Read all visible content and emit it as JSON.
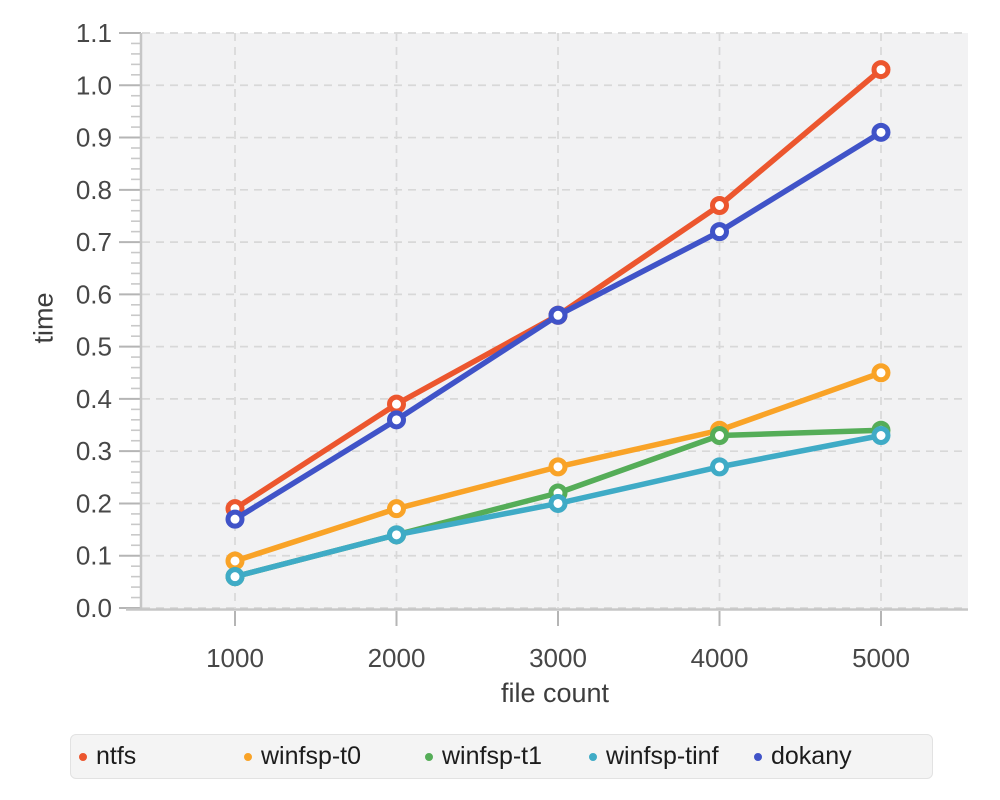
{
  "chart_data": {
    "type": "line",
    "title": "",
    "xlabel": "file count",
    "ylabel": "time",
    "x": [
      1000,
      2000,
      3000,
      4000,
      5000
    ],
    "x_tick_labels": [
      "1000",
      "2000",
      "3000",
      "4000",
      "5000"
    ],
    "ylim": [
      0.0,
      1.1
    ],
    "y_major_step": 0.1,
    "y_minor_step": 0.02,
    "y_tick_labels": [
      "0.0",
      "0.1",
      "0.2",
      "0.3",
      "0.4",
      "0.5",
      "0.6",
      "0.7",
      "0.8",
      "0.9",
      "1.0",
      "1.1"
    ],
    "grid": "dashed",
    "legend_position": "bottom",
    "marker": "open-circle",
    "series": [
      {
        "name": "ntfs",
        "color": "#ec562e",
        "values": [
          0.19,
          0.39,
          0.56,
          0.77,
          1.03
        ]
      },
      {
        "name": "winfsp-t0",
        "color": "#f9a327",
        "values": [
          0.09,
          0.19,
          0.27,
          0.34,
          0.45
        ]
      },
      {
        "name": "winfsp-t1",
        "color": "#55ad58",
        "values": [
          0.06,
          0.14,
          0.22,
          0.33,
          0.34
        ]
      },
      {
        "name": "winfsp-tinf",
        "color": "#3fabc6",
        "values": [
          0.06,
          0.14,
          0.2,
          0.27,
          0.33
        ]
      },
      {
        "name": "dokany",
        "color": "#4053c8",
        "values": [
          0.17,
          0.36,
          0.56,
          0.72,
          0.91
        ]
      }
    ]
  },
  "colors": {
    "plot_bg": "#f2f2f3",
    "grid": "#d8d8d8",
    "axis": "#c6c6c6",
    "major_tick": "#b5b5b5",
    "minor_tick": "#c9c9c9",
    "tick_label": "#474747",
    "axis_title": "#3d3d3d",
    "marker_fill": "#ffffff"
  }
}
